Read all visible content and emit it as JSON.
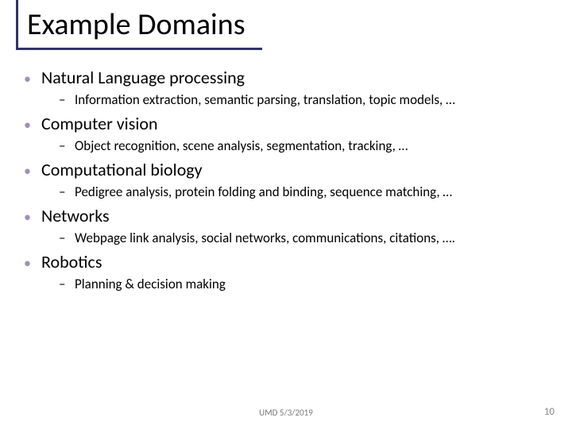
{
  "title": "Example Domains",
  "colors": {
    "accent": "#333366",
    "bullet": "#a08fb8",
    "text": "#000000",
    "footer": "#7a7a7a",
    "pagenum": "#888888",
    "background": "#ffffff"
  },
  "items": [
    {
      "label": "Natural Language processing",
      "sub": "Information extraction, semantic parsing, translation, topic models, …"
    },
    {
      "label": "Computer vision",
      "sub": "Object recognition, scene analysis, segmentation, tracking, …"
    },
    {
      "label": "Computational biology",
      "sub": "Pedigree analysis, protein folding and binding, sequence matching, …"
    },
    {
      "label": "Networks",
      "sub": "Webpage link analysis, social networks, communications, citations, …."
    },
    {
      "label": "Robotics",
      "sub": "Planning & decision making"
    }
  ],
  "footer": {
    "center": "UMD 5/3/2019",
    "page": "10"
  }
}
